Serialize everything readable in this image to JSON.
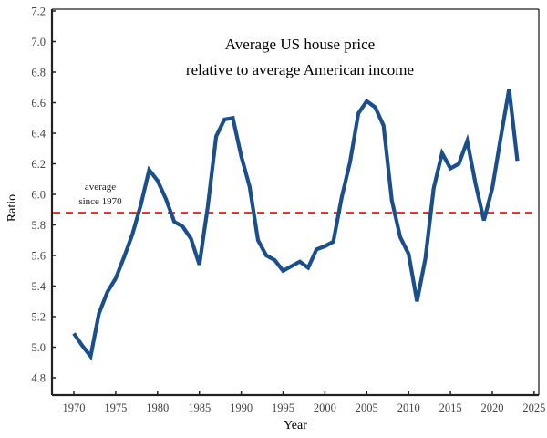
{
  "chart_data": {
    "type": "line",
    "title": [
      "Average US house price",
      "relative to average American income"
    ],
    "xlabel": "Year",
    "ylabel": "Ratio",
    "xlim": [
      1967.5,
      2025.8
    ],
    "ylim": [
      4.68,
      7.23
    ],
    "xticks": [
      1970,
      1975,
      1980,
      1985,
      1990,
      1995,
      2000,
      2005,
      2010,
      2015,
      2020,
      2025
    ],
    "xtick_labels": [
      "1970",
      "1975",
      "1980",
      "1985",
      "1990",
      "1995",
      "2000",
      "2005",
      "2010",
      "2015",
      "2020",
      "2025"
    ],
    "yticks": [
      4.8,
      5.0,
      5.2,
      5.4,
      5.6,
      5.8,
      6.0,
      6.2,
      6.4,
      6.6,
      6.8,
      7.0,
      7.2
    ],
    "ytick_labels": [
      "4.8",
      "5.0",
      "5.2",
      "5.4",
      "5.6",
      "5.8",
      "6.0",
      "6.2",
      "6.4",
      "6.6",
      "6.8",
      "7.0",
      "7.2"
    ],
    "grid": false,
    "series": [
      {
        "name": "Ratio",
        "color": "#1a4f8b",
        "x": [
          1970,
          1971,
          1972,
          1973,
          1974,
          1975,
          1976,
          1977,
          1978,
          1979,
          1980,
          1981,
          1982,
          1983,
          1984,
          1985,
          1986,
          1987,
          1988,
          1989,
          1990,
          1991,
          1992,
          1993,
          1994,
          1995,
          1996,
          1997,
          1998,
          1999,
          2000,
          2001,
          2002,
          2003,
          2004,
          2005,
          2006,
          2007,
          2008,
          2009,
          2010,
          2011,
          2012,
          2013,
          2014,
          2015,
          2016,
          2017,
          2018,
          2019,
          2020,
          2021,
          2022,
          2023
        ],
        "values": [
          5.09,
          5.01,
          4.94,
          5.22,
          5.36,
          5.45,
          5.59,
          5.74,
          5.93,
          6.16,
          6.09,
          5.97,
          5.82,
          5.79,
          5.71,
          5.54,
          5.92,
          6.38,
          6.49,
          6.5,
          6.25,
          6.05,
          5.7,
          5.6,
          5.57,
          5.5,
          5.53,
          5.56,
          5.52,
          5.64,
          5.66,
          5.69,
          5.98,
          6.21,
          6.53,
          6.61,
          6.57,
          6.45,
          5.96,
          5.72,
          5.61,
          5.3,
          5.58,
          6.04,
          6.27,
          6.17,
          6.2,
          6.35,
          6.07,
          5.83,
          6.04,
          6.37,
          6.69,
          6.22
        ]
      }
    ],
    "reference_line": {
      "value": 5.88,
      "color": "#e8262a",
      "style": "dashed",
      "annotation": [
        "average",
        "since 1970"
      ]
    }
  }
}
